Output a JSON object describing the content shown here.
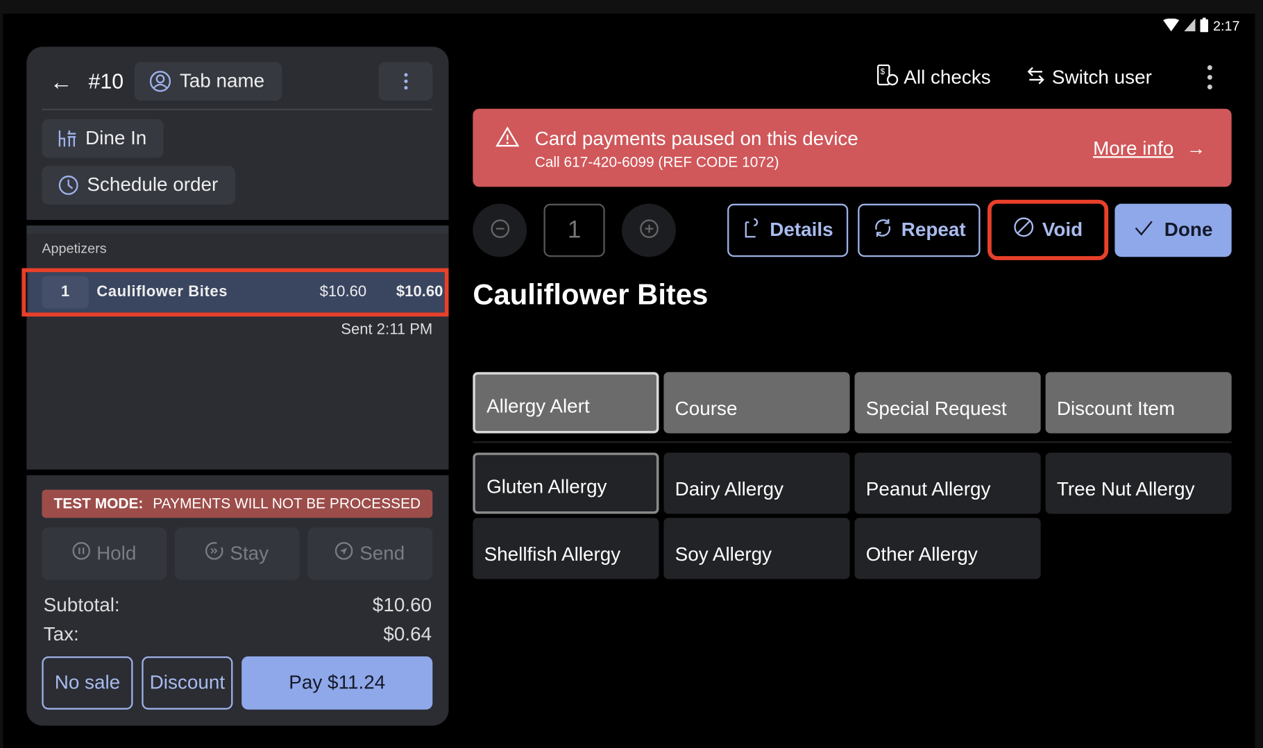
{
  "status_bar": {
    "time": "2:17",
    "icons": [
      "wifi-icon",
      "signal-icon",
      "battery-icon"
    ]
  },
  "order": {
    "number": "#10",
    "tab_name": "Tab name",
    "dine_in": "Dine In",
    "schedule": "Schedule order",
    "section": "Appetizers",
    "items": [
      {
        "qty": "1",
        "name": "Cauliflower Bites",
        "unit_price": "$10.60",
        "total": "$10.60",
        "sent": "Sent 2:11 PM"
      }
    ],
    "test_mode_label": "TEST MODE:",
    "test_mode_text": "PAYMENTS WILL NOT BE PROCESSED",
    "actions": {
      "hold": "Hold",
      "stay": "Stay",
      "send": "Send"
    },
    "subtotal_label": "Subtotal:",
    "subtotal": "$10.60",
    "tax_label": "Tax:",
    "tax": "$0.64",
    "no_sale": "No sale",
    "discount": "Discount",
    "pay": "Pay $11.24"
  },
  "header": {
    "all_checks": "All checks",
    "switch_user": "Switch user"
  },
  "alert": {
    "title": "Card payments paused on this device",
    "subtitle": "Call 617-420-6099 (REF CODE 1072)",
    "link": "More info",
    "color": "#d0575a"
  },
  "item_editor": {
    "quantity": "1",
    "details": "Details",
    "repeat": "Repeat",
    "void": "Void",
    "done": "Done",
    "title": "Cauliflower Bites",
    "groups": [
      "Allergy Alert",
      "Course",
      "Special Request",
      "Discount Item"
    ],
    "selected_group": "Allergy Alert",
    "modifiers": [
      "Gluten Allergy",
      "Dairy Allergy",
      "Peanut Allergy",
      "Tree Nut Allergy",
      "Shellfish Allergy",
      "Soy Allergy",
      "Other Allergy"
    ],
    "selected_modifier": "Gluten Allergy"
  },
  "colors": {
    "accent": "#8fa8ea",
    "highlight_outline": "#e8402a",
    "test_banner": "#9c4d4a"
  }
}
